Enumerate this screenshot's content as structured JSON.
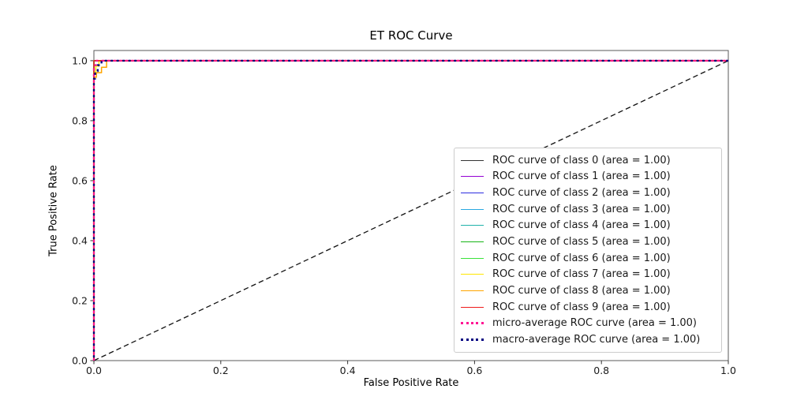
{
  "figure": {
    "title": "ET ROC Curve",
    "background_color": "#ffffff",
    "spine_color": "#5a5a5a",
    "legend_border_color": "#cccccc"
  },
  "chart_data": {
    "type": "line",
    "title": "ET ROC Curve",
    "xlabel": "False Positive Rate",
    "ylabel": "True Positive Rate",
    "xlim": [
      0.0,
      1.0
    ],
    "ylim": [
      0.0,
      1.034
    ],
    "grid": false,
    "legend_position": "lower right",
    "xticks": [
      {
        "value": 0.0,
        "label": "0.0"
      },
      {
        "value": 0.2,
        "label": "0.2"
      },
      {
        "value": 0.4,
        "label": "0.4"
      },
      {
        "value": 0.6,
        "label": "0.6"
      },
      {
        "value": 0.8,
        "label": "0.8"
      },
      {
        "value": 1.0,
        "label": "1.0"
      }
    ],
    "yticks": [
      {
        "value": 0.0,
        "label": "0.0"
      },
      {
        "value": 0.2,
        "label": "0.2"
      },
      {
        "value": 0.4,
        "label": "0.4"
      },
      {
        "value": 0.6,
        "label": "0.6"
      },
      {
        "value": 0.8,
        "label": "0.8"
      },
      {
        "value": 1.0,
        "label": "1.0"
      }
    ],
    "diagonal": {
      "name": "chance-diagonal",
      "color": "#111111",
      "style": "dashed",
      "line_width": 1.3,
      "points": [
        [
          0,
          0
        ],
        [
          1,
          1
        ]
      ]
    },
    "series": [
      {
        "name": "ROC curve of class 0 (area = 1.00)",
        "auc": 1.0,
        "color": "#333333",
        "style": "solid",
        "line_width": 1.5,
        "points": [
          [
            0,
            0
          ],
          [
            0,
            1
          ],
          [
            1,
            1
          ]
        ]
      },
      {
        "name": "ROC curve of class 1 (area = 1.00)",
        "auc": 1.0,
        "color": "#9400d3",
        "style": "solid",
        "line_width": 1.5,
        "points": [
          [
            0,
            0
          ],
          [
            0,
            1
          ],
          [
            1,
            1
          ]
        ]
      },
      {
        "name": "ROC curve of class 2 (area = 1.00)",
        "auc": 1.0,
        "color": "#2d2de1",
        "style": "solid",
        "line_width": 1.5,
        "points": [
          [
            0,
            0
          ],
          [
            0,
            1
          ],
          [
            1,
            1
          ]
        ]
      },
      {
        "name": "ROC curve of class 3 (area = 1.00)",
        "auc": 1.0,
        "color": "#29a8e1",
        "style": "solid",
        "line_width": 1.5,
        "points": [
          [
            0,
            0
          ],
          [
            0,
            1
          ],
          [
            1,
            1
          ]
        ]
      },
      {
        "name": "ROC curve of class 4 (area = 1.00)",
        "auc": 1.0,
        "color": "#20b2aa",
        "style": "solid",
        "line_width": 1.5,
        "points": [
          [
            0,
            0
          ],
          [
            0,
            1
          ],
          [
            1,
            1
          ]
        ]
      },
      {
        "name": "ROC curve of class 5 (area = 1.00)",
        "auc": 1.0,
        "color": "#17b517",
        "style": "solid",
        "line_width": 1.5,
        "points": [
          [
            0,
            0
          ],
          [
            0,
            1
          ],
          [
            1,
            1
          ]
        ]
      },
      {
        "name": "ROC curve of class 6 (area = 1.00)",
        "auc": 1.0,
        "color": "#3ae13a",
        "style": "solid",
        "line_width": 1.5,
        "points": [
          [
            0,
            0
          ],
          [
            0,
            1
          ],
          [
            1,
            1
          ]
        ]
      },
      {
        "name": "ROC curve of class 7 (area = 1.00)",
        "auc": 1.0,
        "color": "#ffe600",
        "style": "solid",
        "line_width": 1.5,
        "points": [
          [
            0,
            0
          ],
          [
            0,
            0.962
          ],
          [
            0.003,
            0.962
          ],
          [
            0.003,
            0.982
          ],
          [
            0.008,
            0.982
          ],
          [
            0.008,
            1
          ],
          [
            1,
            1
          ]
        ]
      },
      {
        "name": "ROC curve of class 8 (area = 1.00)",
        "auc": 1.0,
        "color": "#ffa500",
        "style": "solid",
        "line_width": 1.5,
        "points": [
          [
            0,
            0
          ],
          [
            0,
            0.945
          ],
          [
            0.004,
            0.945
          ],
          [
            0.004,
            0.96
          ],
          [
            0.012,
            0.96
          ],
          [
            0.012,
            0.978
          ],
          [
            0.02,
            0.978
          ],
          [
            0.02,
            1
          ],
          [
            1,
            1
          ]
        ]
      },
      {
        "name": "ROC curve of class 9 (area = 1.00)",
        "auc": 1.0,
        "color": "#ef1c1c",
        "style": "solid",
        "line_width": 1.5,
        "points": [
          [
            0,
            0
          ],
          [
            0,
            1
          ],
          [
            1,
            1
          ]
        ]
      },
      {
        "name": "micro-average ROC curve (area = 1.00)",
        "auc": 1.0,
        "color": "#ff1493",
        "style": "dotted",
        "line_width": 2.4,
        "dash_phase": 0,
        "points": [
          [
            0,
            0
          ],
          [
            0,
            0.985
          ],
          [
            0.003,
            0.985
          ],
          [
            0.003,
            1
          ],
          [
            1,
            1
          ]
        ]
      },
      {
        "name": "macro-average ROC curve (area = 1.00)",
        "auc": 1.0,
        "color": "#000080",
        "style": "dotted",
        "line_width": 2.4,
        "dash_phase": 3.75,
        "points": [
          [
            0,
            0
          ],
          [
            0,
            0.94
          ],
          [
            0.002,
            0.94
          ],
          [
            0.002,
            0.965
          ],
          [
            0.006,
            0.965
          ],
          [
            0.006,
            0.985
          ],
          [
            0.012,
            0.985
          ],
          [
            0.012,
            1
          ],
          [
            1,
            1
          ]
        ]
      }
    ]
  }
}
